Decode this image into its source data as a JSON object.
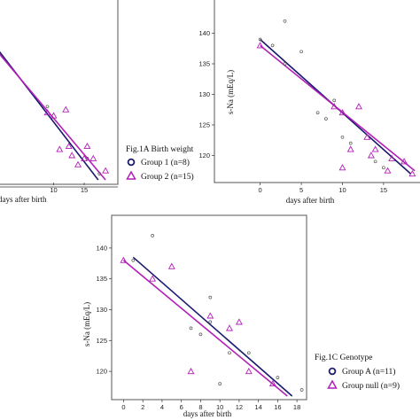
{
  "colors": {
    "group1": "#1a1a6e",
    "group2": "#b21eb8",
    "axis": "#333333",
    "frame": "#555555"
  },
  "panels": {
    "A": {
      "xlabel": "days after birth",
      "ylabel": "",
      "x_ticks": [
        "10",
        "15"
      ],
      "legend_title": "Fig.1A Birth weight",
      "legend_items": [
        "Group 1 (n=8)",
        "Group 2 (n=15)"
      ]
    },
    "B": {
      "xlabel": "days after birth",
      "ylabel": "s-Na (mEq/L)",
      "x_ticks": [
        "0",
        "5",
        "10",
        "15"
      ],
      "y_ticks": [
        "120",
        "125",
        "130",
        "135",
        "140"
      ]
    },
    "C": {
      "xlabel": "days after birth",
      "ylabel": "s-Na (mEq/L)",
      "x_ticks": [
        "0",
        "2",
        "4",
        "6",
        "8",
        "10",
        "12",
        "14",
        "16",
        "18"
      ],
      "y_ticks": [
        "120",
        "125",
        "130",
        "135",
        "140"
      ],
      "legend_title": "Fig.1C Genotype",
      "legend_items": [
        "Group A (n=11)",
        "Group null (n=9)"
      ]
    }
  },
  "chart_data": [
    {
      "type": "scatter",
      "panel": "A",
      "xlabel": "days after birth",
      "ylabel": "",
      "xlim": [
        -0.5,
        19.5
      ],
      "ylim": [
        116,
        144
      ],
      "series": [
        {
          "name": "Group 1 (n=8)",
          "marker": "circle",
          "x": [
            9,
            15.5,
            17.5
          ],
          "y": [
            128,
            119.5,
            117
          ]
        },
        {
          "name": "Group 2 (n=15)",
          "marker": "triangle",
          "x": [
            9,
            10,
            11,
            12,
            12.5,
            13,
            14,
            15,
            15.5,
            16.5,
            18.5
          ],
          "y": [
            127,
            126.5,
            121,
            127.5,
            121.5,
            120,
            118.5,
            119.5,
            121.5,
            119.5,
            117.5
          ]
        }
      ],
      "fit_lines": [
        {
          "series": "Group 1 (n=8)",
          "x": [
            0,
            17.3
          ],
          "y": [
            138.5,
            116
          ]
        },
        {
          "series": "Group 2 (n=15)",
          "x": [
            0,
            18.5
          ],
          "y": [
            138,
            116
          ]
        }
      ]
    },
    {
      "type": "scatter",
      "panel": "B",
      "xlabel": "days after birth",
      "ylabel": "s-Na (mEq/L)",
      "xlim": [
        -0.5,
        19
      ],
      "ylim": [
        116,
        144
      ],
      "series": [
        {
          "name": "Group 1 (n=8)",
          "marker": "circle",
          "x": [
            0,
            1.5,
            3,
            3,
            5,
            7,
            8,
            9,
            10,
            11,
            14,
            15
          ],
          "y": [
            139,
            138,
            142,
            135,
            137,
            127,
            126,
            129,
            123,
            122,
            119,
            118
          ]
        },
        {
          "name": "Group 2 (n=15)",
          "marker": "triangle",
          "x": [
            0,
            9,
            10,
            10,
            11,
            12,
            13,
            13.5,
            14,
            15.5,
            16,
            17.5,
            18.5
          ],
          "y": [
            138,
            128,
            127,
            118,
            121,
            128,
            123,
            120,
            121,
            117.5,
            119.5,
            119,
            117
          ]
        }
      ],
      "fit_lines": [
        {
          "series": "Group 1 (n=8)",
          "x": [
            0,
            18.3
          ],
          "y": [
            139,
            117
          ]
        },
        {
          "series": "Group 2 (n=15)",
          "x": [
            0,
            18.8
          ],
          "y": [
            138,
            117.5
          ]
        }
      ]
    },
    {
      "type": "scatter",
      "panel": "C",
      "xlabel": "days after birth",
      "ylabel": "s-Na (mEq/L)",
      "xlim": [
        -0.5,
        19
      ],
      "ylim": [
        116,
        144
      ],
      "series": [
        {
          "name": "Group A (n=11)",
          "marker": "circle",
          "x": [
            1,
            3,
            7,
            8,
            9,
            9,
            10,
            11,
            13,
            16,
            18.5
          ],
          "y": [
            138,
            142,
            127,
            126,
            132,
            128,
            118,
            123,
            123,
            119,
            117
          ]
        },
        {
          "name": "Group null (n=9)",
          "marker": "triangle",
          "x": [
            0,
            3,
            5,
            7,
            9,
            11,
            12,
            13,
            15.5
          ],
          "y": [
            138,
            135,
            137,
            120,
            129,
            127,
            128,
            120,
            118
          ]
        }
      ],
      "fit_lines": [
        {
          "series": "Group A (n=11)",
          "x": [
            1,
            17.5
          ],
          "y": [
            138.5,
            116
          ]
        },
        {
          "series": "Group null (n=9)",
          "x": [
            0,
            17
          ],
          "y": [
            138,
            116
          ]
        }
      ]
    }
  ]
}
